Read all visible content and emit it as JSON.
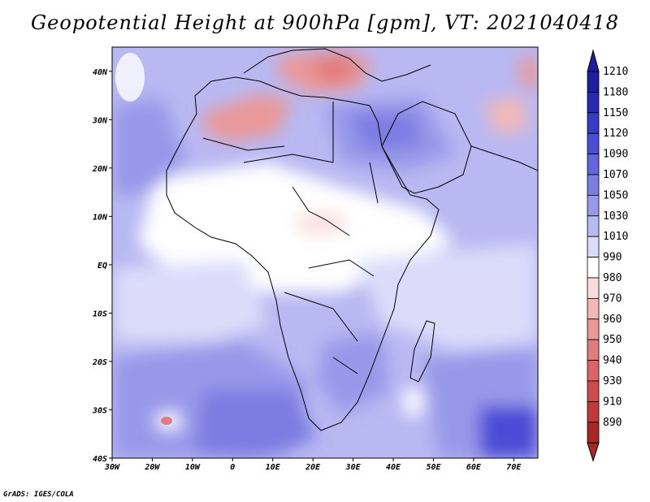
{
  "title": "Geopotential Height at 900hPa [gpm], VT: 2021040418",
  "credit": "GrADS: IGES/COLA",
  "map": {
    "lon_range": [
      -30,
      76
    ],
    "lat_range": [
      -40,
      45
    ],
    "lon_ticks": [
      "30W",
      "20W",
      "10W",
      "0",
      "10E",
      "20E",
      "30E",
      "40E",
      "50E",
      "60E",
      "70E"
    ],
    "lat_ticks": [
      "40S",
      "30S",
      "20S",
      "10S",
      "EQ",
      "10N",
      "20N",
      "30N",
      "40N"
    ]
  },
  "colorbar": {
    "levels": [
      "1210",
      "1180",
      "1150",
      "1120",
      "1090",
      "1070",
      "1050",
      "1030",
      "1010",
      "990",
      "980",
      "970",
      "960",
      "950",
      "940",
      "930",
      "910",
      "890"
    ],
    "colors": [
      "#1e1ea0",
      "#2828b4",
      "#3a3ac8",
      "#4c4cd6",
      "#6464dc",
      "#7c7ce2",
      "#9898ea",
      "#b8b8f2",
      "#dcdcfa",
      "#ffffff",
      "#fadcdc",
      "#f2b8b8",
      "#ea9898",
      "#e27c7c",
      "#dc6464",
      "#d04c4c",
      "#c03a3a",
      "#a82828"
    ]
  }
}
